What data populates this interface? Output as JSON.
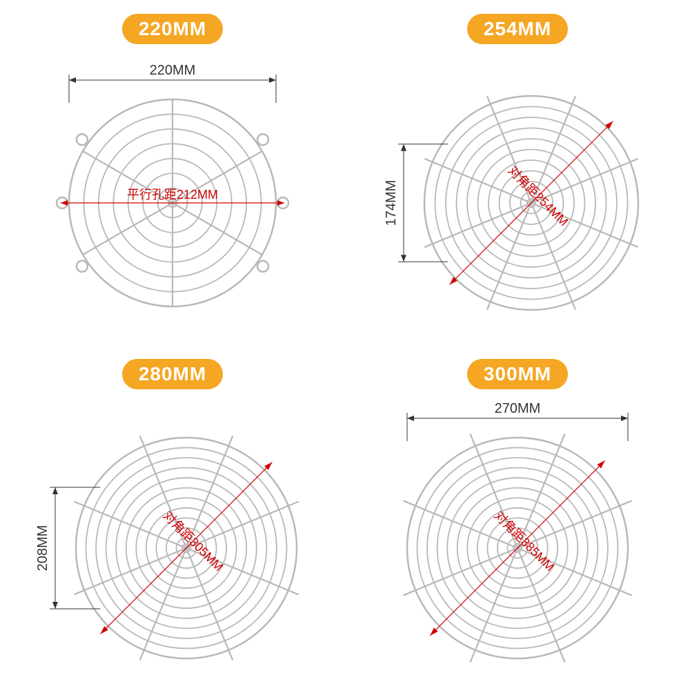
{
  "badge_color": "#f5a623",
  "wire_color": "#b8b8b8",
  "dim_color": "#333333",
  "red_color": "#d00000",
  "panels": [
    {
      "badge": "220MM",
      "rings": 7,
      "outer_r": 150,
      "spokes": 6,
      "spoke_len_factor": 1.0,
      "show_lugs": true,
      "top_dim": "220MM",
      "side_dim": null,
      "diag_label": null,
      "horiz_red": "平行孔距212MM"
    },
    {
      "badge": "254MM",
      "rings": 10,
      "outer_r": 155,
      "spokes": 8,
      "spoke_len_factor": 1.08,
      "show_lugs": false,
      "top_dim": null,
      "side_dim": "174MM",
      "diag_label": "对角距254MM",
      "horiz_red": null
    },
    {
      "badge": "280MM",
      "rings": 11,
      "outer_r": 160,
      "spokes": 8,
      "spoke_len_factor": 1.1,
      "show_lugs": false,
      "top_dim": null,
      "side_dim": "208MM",
      "diag_label": "对角距305MM",
      "horiz_red": null
    },
    {
      "badge": "300MM",
      "rings": 11,
      "outer_r": 160,
      "spokes": 8,
      "spoke_len_factor": 1.12,
      "show_lugs": false,
      "top_dim": "270MM",
      "side_dim": null,
      "diag_label": "对角距385MM",
      "horiz_red": null
    }
  ]
}
